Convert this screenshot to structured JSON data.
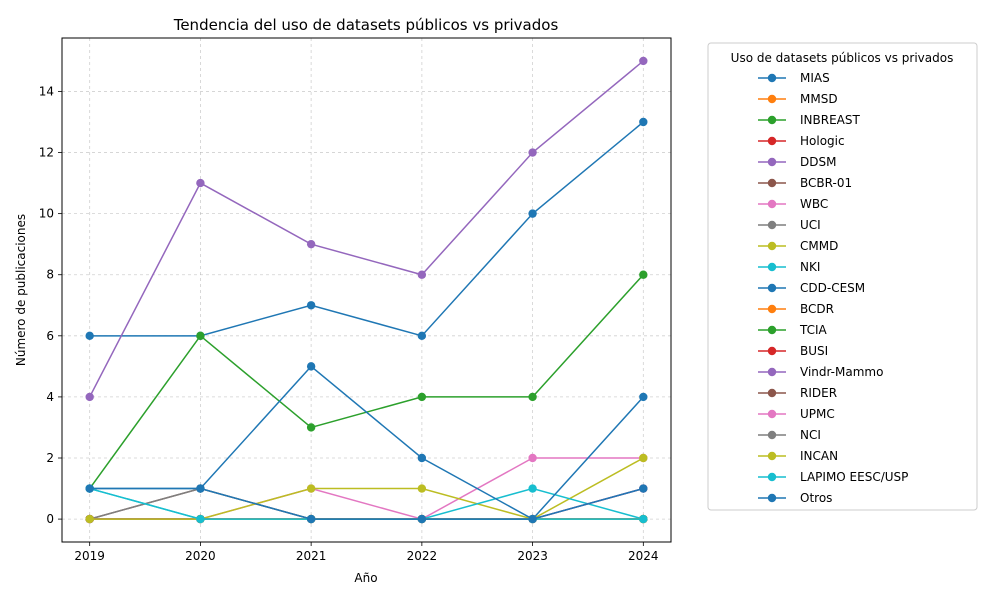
{
  "chart_data": {
    "type": "line",
    "title": "Tendencia del uso de datasets públicos vs privados",
    "xlabel": "Año",
    "ylabel": "Número de publicaciones",
    "x": [
      2019,
      2020,
      2021,
      2022,
      2023,
      2024
    ],
    "x_ticks": [
      "2019",
      "2020",
      "2021",
      "2022",
      "2023",
      "2024"
    ],
    "y_ticks": [
      "0",
      "2",
      "4",
      "6",
      "8",
      "10",
      "12",
      "14"
    ],
    "ylim": [
      -0.75,
      15.75
    ],
    "xlim": [
      2018.75,
      2024.25
    ],
    "grid": true,
    "legend_title": "Uso de datasets públicos vs privados",
    "legend_position": "outside-right",
    "series": [
      {
        "name": "MIAS",
        "color": "#1f77b4",
        "values": [
          6,
          6,
          7,
          6,
          10,
          13
        ]
      },
      {
        "name": "MMSD",
        "color": "#ff7f0e",
        "values": [
          0,
          0,
          0,
          0,
          0,
          0
        ]
      },
      {
        "name": "INBREAST",
        "color": "#2ca02c",
        "values": [
          1,
          6,
          3,
          4,
          4,
          8
        ]
      },
      {
        "name": "Hologic",
        "color": "#d62728",
        "values": [
          0,
          0,
          0,
          0,
          0,
          0
        ]
      },
      {
        "name": "DDSM",
        "color": "#9467bd",
        "values": [
          4,
          11,
          9,
          8,
          12,
          15
        ]
      },
      {
        "name": "BCBR-01",
        "color": "#8c564b",
        "values": [
          0,
          1,
          0,
          0,
          0,
          0
        ]
      },
      {
        "name": "WBC",
        "color": "#e377c2",
        "values": [
          0,
          0,
          1,
          0,
          2,
          2
        ]
      },
      {
        "name": "UCI",
        "color": "#7f7f7f",
        "values": [
          0,
          1,
          0,
          0,
          0,
          0
        ]
      },
      {
        "name": "CMMD",
        "color": "#bcbd22",
        "values": [
          0,
          0,
          1,
          1,
          0,
          2
        ]
      },
      {
        "name": "NKI",
        "color": "#17becf",
        "values": [
          1,
          0,
          0,
          0,
          1,
          0
        ]
      },
      {
        "name": "CDD-CESM",
        "color": "#1f77b4",
        "values": [
          1,
          1,
          5,
          2,
          0,
          4
        ]
      },
      {
        "name": "BCDR",
        "color": "#ff7f0e",
        "values": [
          0,
          0,
          0,
          0,
          0,
          0
        ]
      },
      {
        "name": "TCIA",
        "color": "#2ca02c",
        "values": [
          0,
          0,
          0,
          0,
          0,
          0
        ]
      },
      {
        "name": "BUSI",
        "color": "#d62728",
        "values": [
          0,
          0,
          0,
          0,
          0,
          1
        ]
      },
      {
        "name": "Vindr-Mammo",
        "color": "#9467bd",
        "values": [
          0,
          0,
          0,
          0,
          0,
          1
        ]
      },
      {
        "name": "RIDER",
        "color": "#8c564b",
        "values": [
          0,
          0,
          0,
          0,
          0,
          0
        ]
      },
      {
        "name": "UPMC",
        "color": "#e377c2",
        "values": [
          0,
          0,
          0,
          0,
          0,
          0
        ]
      },
      {
        "name": "NCI",
        "color": "#7f7f7f",
        "values": [
          0,
          0,
          0,
          0,
          0,
          0
        ]
      },
      {
        "name": "INCAN",
        "color": "#bcbd22",
        "values": [
          0,
          0,
          0,
          0,
          0,
          0
        ]
      },
      {
        "name": "LAPIMO EESC/USP",
        "color": "#17becf",
        "values": [
          1,
          0,
          0,
          0,
          0,
          0
        ]
      },
      {
        "name": "Otros",
        "color": "#1f77b4",
        "values": [
          1,
          1,
          0,
          0,
          0,
          1
        ]
      }
    ]
  }
}
